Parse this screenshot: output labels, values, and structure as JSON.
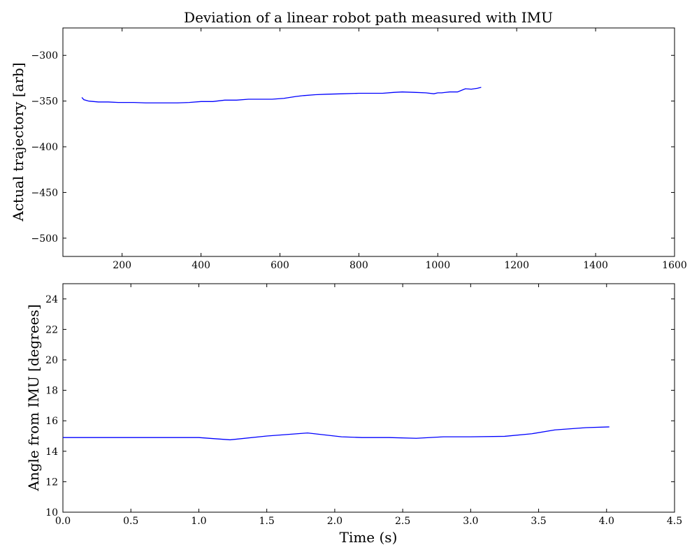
{
  "title": "Deviation of a linear robot path measured with IMU",
  "colors": {
    "line": "#0000ff",
    "axes": "#000000",
    "background": "#ffffff"
  },
  "chart_data": [
    {
      "type": "line",
      "title": "Deviation of a linear robot path measured with IMU",
      "xlabel": "",
      "ylabel": "Actual trajectory [arb]",
      "xlim": [
        50,
        1600
      ],
      "ylim": [
        -520,
        -270
      ],
      "xticks": [
        200,
        400,
        600,
        800,
        1000,
        1200,
        1400,
        1600
      ],
      "xtick_labels": [
        "200",
        "400",
        "600",
        "800",
        "1000",
        "1200",
        "1400",
        "1600"
      ],
      "yticks": [
        -300,
        -350,
        -400,
        -450,
        -500
      ],
      "ytick_labels": [
        "−300",
        "−350",
        "−400",
        "−450",
        "−500"
      ],
      "grid": false,
      "series": [
        {
          "x": [
            98,
            103,
            115,
            140,
            165,
            190,
            210,
            230,
            260,
            300,
            340,
            370,
            400,
            430,
            460,
            490,
            520,
            550,
            580,
            610,
            640,
            660,
            690,
            720,
            760,
            800,
            830,
            860,
            890,
            910,
            940,
            970,
            990,
            1000,
            1010,
            1030,
            1050,
            1070,
            1085,
            1100,
            1110
          ],
          "y": [
            -346,
            -348.5,
            -350,
            -351,
            -351,
            -351.5,
            -351.5,
            -351.5,
            -352,
            -352,
            -352,
            -351.5,
            -350.5,
            -350.5,
            -349,
            -349,
            -348,
            -348,
            -348,
            -347,
            -345,
            -344,
            -343,
            -342.5,
            -342,
            -341.5,
            -341.5,
            -341.5,
            -340.5,
            -340,
            -340.5,
            -341,
            -342,
            -341,
            -341,
            -340,
            -340,
            -336.5,
            -337,
            -336,
            -335
          ]
        }
      ]
    },
    {
      "type": "line",
      "title": "",
      "xlabel": "Time (s)",
      "ylabel": "Angle from IMU [degrees]",
      "xlim": [
        0,
        4.5
      ],
      "ylim": [
        10,
        25
      ],
      "xticks": [
        0,
        0.5,
        1,
        1.5,
        2,
        2.5,
        3,
        3.5,
        4,
        4.5
      ],
      "xtick_labels": [
        "0.0",
        "0.5",
        "1.0",
        "1.5",
        "2.0",
        "2.5",
        "3.0",
        "3.5",
        "4.0",
        "4.5"
      ],
      "yticks": [
        10,
        12,
        14,
        16,
        18,
        20,
        22,
        24
      ],
      "ytick_labels": [
        "10",
        "12",
        "14",
        "16",
        "18",
        "20",
        "22",
        "24"
      ],
      "grid": false,
      "series": [
        {
          "x": [
            0.0,
            1.0,
            1.23,
            1.5,
            1.8,
            2.05,
            2.2,
            2.4,
            2.6,
            2.8,
            3.0,
            3.25,
            3.45,
            3.62,
            3.85,
            4.02
          ],
          "y": [
            14.9,
            14.9,
            14.75,
            15.0,
            15.2,
            14.95,
            14.9,
            14.9,
            14.85,
            14.95,
            14.95,
            14.98,
            15.15,
            15.4,
            15.55,
            15.6
          ]
        }
      ]
    }
  ]
}
